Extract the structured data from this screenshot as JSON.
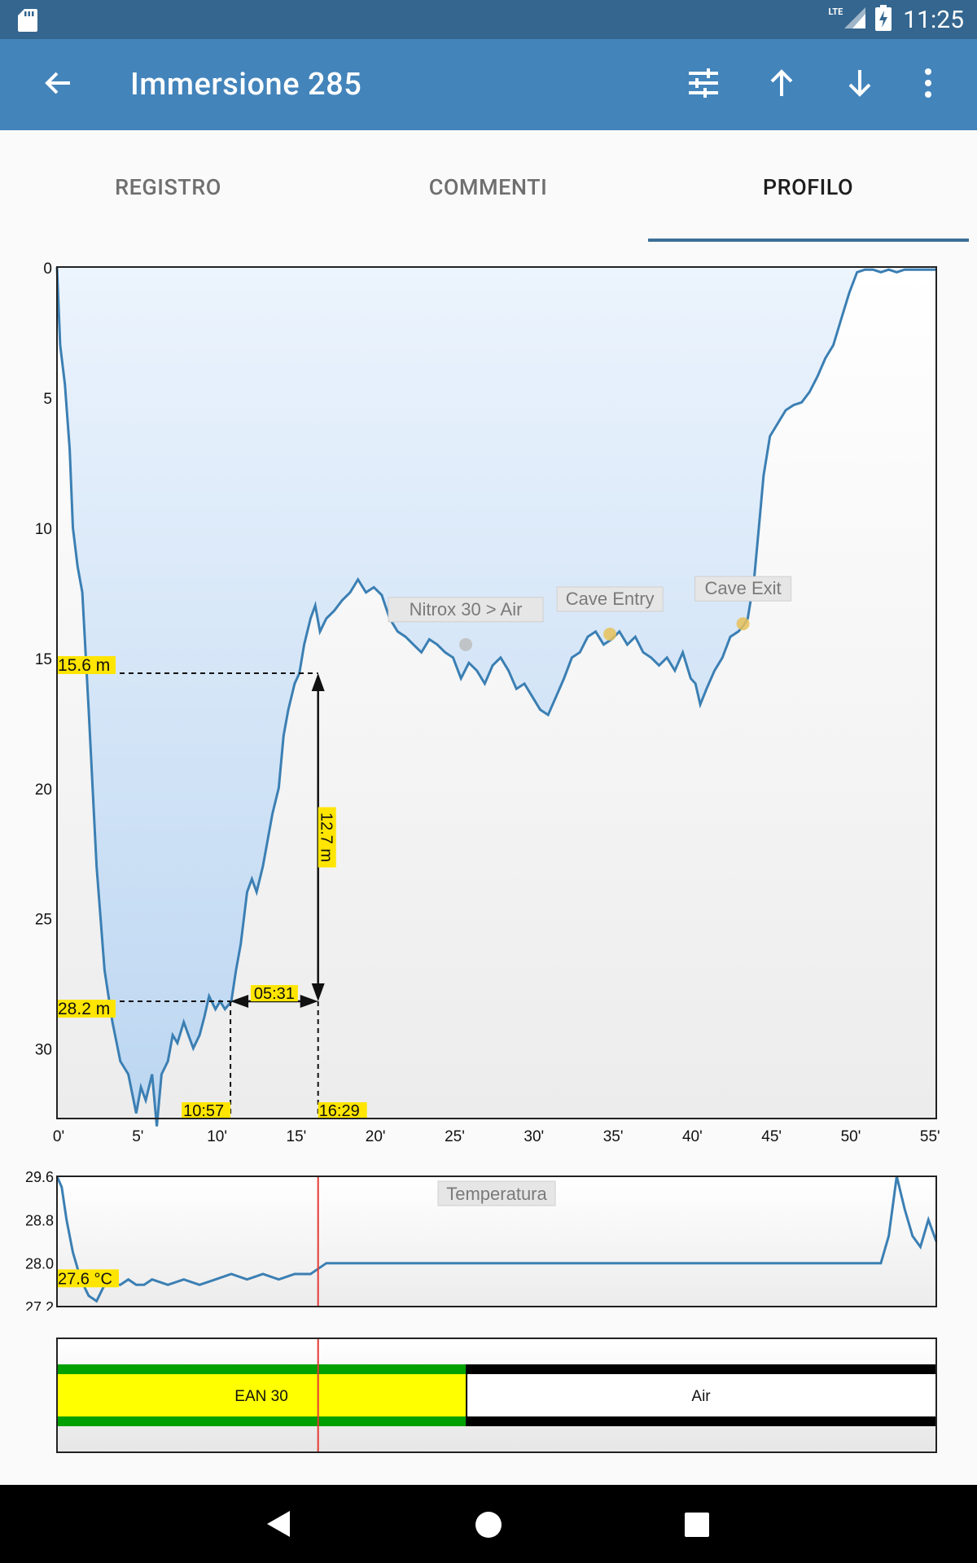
{
  "status_bar": {
    "time": "11:25",
    "network": "LTE"
  },
  "app_bar": {
    "title": "Immersione 285"
  },
  "tabs": [
    {
      "label": "REGISTRO",
      "active": false
    },
    {
      "label": "COMMENTI",
      "active": false
    },
    {
      "label": "PROFILO",
      "active": true
    }
  ],
  "icons": {
    "back": "arrow-left-icon",
    "filter": "tune-icon",
    "previous": "arrow-up-icon",
    "next": "arrow-down-icon",
    "more": "more-vert-icon"
  },
  "colors": {
    "status_bar": "#34668f",
    "app_bar": "#4384bb",
    "profile_line": "#3b7fb3",
    "label_highlight": "#ffe500",
    "cursor_line": "#e53935",
    "gas_ean": "#ffff00",
    "gas_ean_border": "#00a000"
  },
  "chart_data": [
    {
      "type": "area",
      "title": "",
      "xlabel": "",
      "ylabel": "",
      "x_unit": "minutes",
      "y_unit": "m",
      "y_inverted": true,
      "xlim": [
        0,
        55.5
      ],
      "ylim": [
        0,
        32.7
      ],
      "x_ticks": [
        "0'",
        "5'",
        "10'",
        "15'",
        "20'",
        "25'",
        "30'",
        "35'",
        "40'",
        "45'",
        "50'",
        "55'"
      ],
      "y_ticks": [
        "0",
        "5",
        "10",
        "15",
        "20",
        "25",
        "30"
      ],
      "series": [
        {
          "x": [
            0,
            0.2,
            0.5,
            0.8,
            1.0,
            1.3,
            1.6,
            2.0,
            2.5,
            3.0,
            3.5,
            4.0,
            4.5,
            5.0,
            5.3,
            5.6,
            6.0,
            6.3,
            6.6,
            7.0,
            7.3,
            7.6,
            8.0,
            8.3,
            8.6,
            9.0,
            9.3,
            9.6,
            10.0,
            10.3,
            10.6,
            11.0,
            11.3,
            11.6,
            12.0,
            12.3,
            12.6,
            13.0,
            13.3,
            13.6,
            14.0,
            14.3,
            14.6,
            15.0,
            15.3,
            15.6,
            16.0,
            16.3,
            16.6,
            17.0,
            17.5,
            18.0,
            18.5,
            19.0,
            19.5,
            20.0,
            20.5,
            21.0,
            21.5,
            22.0,
            22.5,
            23.0,
            23.5,
            24.0,
            24.5,
            25.0,
            25.5,
            26.0,
            26.5,
            27.0,
            27.5,
            28.0,
            28.5,
            29.0,
            29.5,
            30.0,
            30.5,
            31.0,
            31.5,
            32.0,
            32.5,
            33.0,
            33.5,
            34.0,
            34.5,
            35.0,
            35.5,
            36.0,
            36.5,
            37.0,
            37.5,
            38.0,
            38.5,
            39.0,
            39.5,
            40.0,
            40.3,
            40.6,
            41.0,
            41.5,
            42.0,
            42.5,
            43.0,
            43.3,
            43.6,
            44.0,
            44.3,
            44.6,
            45.0,
            45.5,
            46.0,
            46.5,
            47.0,
            47.5,
            48.0,
            48.5,
            49.0,
            49.5,
            50.0,
            50.5,
            51.0,
            51.5,
            52.0,
            52.5,
            53.0,
            53.5,
            54.0,
            54.5,
            55.0,
            55.5
          ],
          "y": [
            0,
            3.0,
            4.5,
            7.0,
            10.0,
            11.5,
            12.5,
            17.0,
            23.0,
            27.0,
            29.0,
            30.5,
            31.0,
            32.5,
            31.5,
            32.0,
            31.0,
            33.0,
            31.0,
            30.5,
            29.5,
            29.8,
            29.0,
            29.5,
            30.0,
            29.5,
            28.8,
            28.0,
            28.5,
            28.2,
            28.5,
            28.2,
            27.0,
            26.0,
            24.0,
            23.5,
            24.0,
            23.0,
            22.0,
            21.0,
            20.0,
            18.0,
            17.0,
            16.0,
            15.6,
            14.5,
            13.5,
            13.0,
            14.0,
            13.5,
            13.2,
            12.8,
            12.5,
            12.0,
            12.5,
            12.3,
            12.6,
            13.5,
            14.0,
            14.2,
            14.5,
            14.8,
            14.3,
            14.5,
            14.8,
            15.0,
            15.8,
            15.2,
            15.5,
            16.0,
            15.3,
            15.0,
            15.5,
            16.2,
            16.0,
            16.5,
            17.0,
            17.2,
            16.5,
            15.8,
            15.0,
            14.8,
            14.2,
            14.0,
            14.5,
            14.3,
            14.0,
            14.5,
            14.2,
            14.8,
            15.0,
            15.3,
            15.0,
            15.5,
            14.8,
            15.8,
            16.0,
            16.8,
            16.2,
            15.5,
            15.0,
            14.2,
            14.0,
            13.8,
            13.5,
            12.0,
            10.0,
            8.0,
            6.5,
            6.0,
            5.5,
            5.3,
            5.2,
            4.8,
            4.2,
            3.5,
            3.0,
            2.0,
            1.0,
            0.2,
            0.1,
            0.1,
            0.2,
            0.1,
            0.2,
            0.1,
            0.1,
            0.1,
            0.1,
            0.1
          ]
        }
      ],
      "annotations": [
        {
          "text": "Nitrox 30 > Air",
          "x": 25.8,
          "y": 14.5
        },
        {
          "text": "Cave Entry",
          "x": 34.9,
          "y": 14.1
        },
        {
          "text": "Cave Exit",
          "x": 43.3,
          "y": 13.7
        }
      ],
      "measure": {
        "depth_high": 15.6,
        "depth_low": 28.2,
        "depth_high_label": "15.6 m",
        "depth_low_label": "28.2 m",
        "time_start": 10.95,
        "time_end": 16.48,
        "time_start_label": "10:57",
        "time_end_label": "16:29",
        "duration_label": "05:31",
        "delta_depth_label": "12.7 m"
      }
    },
    {
      "type": "line",
      "title": "Temperatura",
      "y_unit": "°C",
      "xlim": [
        0,
        55.5
      ],
      "ylim": [
        27.2,
        29.6
      ],
      "y_ticks": [
        "29.6",
        "28.8",
        "28.0",
        "27.2"
      ],
      "current_value_label": "27.6 °C",
      "series": [
        {
          "x": [
            0,
            0.3,
            0.6,
            1.0,
            1.5,
            2.0,
            2.5,
            3.0,
            3.5,
            4.0,
            4.5,
            5.0,
            5.5,
            6.0,
            7.0,
            8.0,
            9.0,
            10.0,
            11.0,
            12.0,
            13.0,
            14.0,
            15.0,
            16.0,
            17.0,
            18.0,
            20.0,
            22.0,
            24.0,
            26.0,
            28.0,
            30.0,
            32.0,
            34.0,
            36.0,
            38.0,
            40.0,
            42.0,
            44.0,
            46.0,
            48.0,
            50.0,
            51.0,
            52.0,
            52.5,
            53.0,
            53.5,
            54.0,
            54.5,
            55.0,
            55.5
          ],
          "y": [
            29.6,
            29.4,
            28.8,
            28.2,
            27.7,
            27.4,
            27.3,
            27.6,
            27.6,
            27.6,
            27.7,
            27.6,
            27.6,
            27.7,
            27.6,
            27.7,
            27.6,
            27.7,
            27.8,
            27.7,
            27.8,
            27.7,
            27.8,
            27.8,
            28.0,
            28.0,
            28.0,
            28.0,
            28.0,
            28.0,
            28.0,
            28.0,
            28.0,
            28.0,
            28.0,
            28.0,
            28.0,
            28.0,
            28.0,
            28.0,
            28.0,
            28.0,
            28.0,
            28.0,
            28.5,
            29.6,
            29.0,
            28.5,
            28.3,
            28.8,
            28.4
          ]
        }
      ]
    },
    {
      "type": "gas_timeline",
      "segments": [
        {
          "label": "EAN 30",
          "start": 0,
          "end": 25.8
        },
        {
          "label": "Air",
          "start": 25.8,
          "end": 55.5
        }
      ]
    }
  ]
}
